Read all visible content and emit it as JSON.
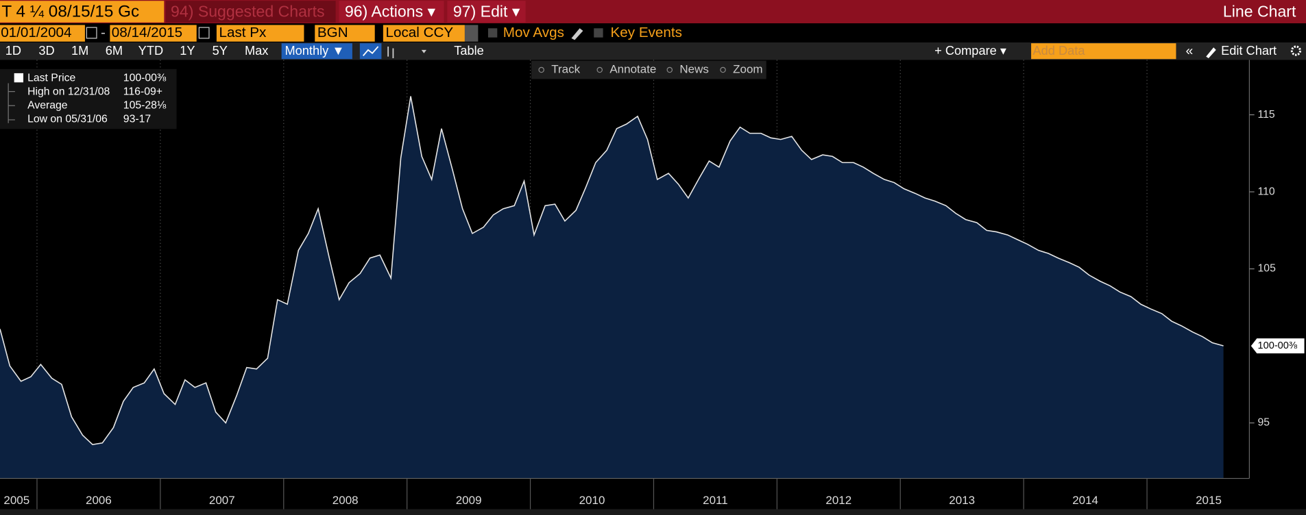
{
  "toolbar": {
    "ticker": "T 4 ¼ 08/15/15 Gc",
    "suggested": "94) Suggested Charts",
    "actions": "96) Actions ▾",
    "edit": "97) Edit ▾",
    "view_title": "Line Chart"
  },
  "settings": {
    "start_date": "01/01/2004",
    "separator": "-",
    "end_date": "08/14/2015",
    "field": "Last Px",
    "source": "BGN",
    "currency": "Local CCY",
    "mov_avgs": "Mov Avgs",
    "key_events": "Key Events"
  },
  "periods": [
    "1D",
    "3D",
    "1M",
    "6M",
    "YTD",
    "1Y",
    "5Y",
    "Max"
  ],
  "frequency": "Monthly ▼",
  "table_button": "Table",
  "compare": "+ Compare ▾",
  "add_data": "Add Data",
  "edit_chart": "Edit Chart",
  "chart_tools": [
    "Track",
    "Annotate",
    "News",
    "Zoom"
  ],
  "chart_data": {
    "type": "area",
    "color": "#e8e8e8",
    "fill": "#0c2140",
    "stats": [
      {
        "label": "Last Price",
        "value": "100-00⅜"
      },
      {
        "label": "High on 12/31/08",
        "value": "116-09+"
      },
      {
        "label": "Average",
        "value": "105-28⅛"
      },
      {
        "label": "Low on 05/31/06",
        "value": "93-17"
      }
    ],
    "xlim": [
      2005.7,
      2015.83
    ],
    "xticks": [
      2005,
      2006,
      2007,
      2008,
      2009,
      2010,
      2011,
      2012,
      2013,
      2014,
      2015
    ],
    "ylim": [
      91.4,
      118.4
    ],
    "yticks": [
      95,
      105,
      110,
      115
    ],
    "grid": true,
    "x": [
      2005.7,
      2005.78,
      2005.87,
      2005.95,
      2006.03,
      2006.12,
      2006.2,
      2006.28,
      2006.37,
      2006.45,
      2006.53,
      2006.62,
      2006.7,
      2006.78,
      2006.87,
      2006.95,
      2007.03,
      2007.12,
      2007.2,
      2007.28,
      2007.37,
      2007.45,
      2007.53,
      2007.62,
      2007.7,
      2007.78,
      2007.87,
      2007.95,
      2008.03,
      2008.12,
      2008.2,
      2008.28,
      2008.37,
      2008.45,
      2008.53,
      2008.62,
      2008.7,
      2008.78,
      2008.87,
      2008.95,
      2009.03,
      2009.12,
      2009.2,
      2009.28,
      2009.37,
      2009.45,
      2009.53,
      2009.62,
      2009.7,
      2009.78,
      2009.87,
      2009.95,
      2010.03,
      2010.12,
      2010.2,
      2010.28,
      2010.37,
      2010.45,
      2010.53,
      2010.62,
      2010.7,
      2010.78,
      2010.87,
      2010.95,
      2011.03,
      2011.12,
      2011.2,
      2011.28,
      2011.37,
      2011.45,
      2011.53,
      2011.62,
      2011.7,
      2011.78,
      2011.87,
      2011.95,
      2012.03,
      2012.12,
      2012.2,
      2012.28,
      2012.37,
      2012.45,
      2012.53,
      2012.62,
      2012.7,
      2012.78,
      2012.87,
      2012.95,
      2013.03,
      2013.12,
      2013.2,
      2013.28,
      2013.37,
      2013.45,
      2013.53,
      2013.62,
      2013.7,
      2013.78,
      2013.87,
      2013.95,
      2014.03,
      2014.12,
      2014.2,
      2014.28,
      2014.37,
      2014.45,
      2014.53,
      2014.62,
      2014.7,
      2014.78,
      2014.87,
      2014.95,
      2015.03,
      2015.12,
      2015.2,
      2015.28,
      2015.37,
      2015.45,
      2015.53,
      2015.62
    ],
    "values": [
      101.1,
      98.7,
      97.7,
      98.0,
      98.8,
      97.9,
      97.5,
      95.4,
      94.2,
      93.6,
      93.7,
      94.7,
      96.4,
      97.3,
      97.6,
      98.5,
      96.9,
      96.2,
      97.8,
      97.3,
      97.6,
      95.7,
      95.0,
      96.8,
      98.6,
      98.5,
      99.2,
      103.0,
      102.7,
      106.2,
      107.3,
      108.9,
      105.7,
      103.0,
      104.1,
      104.7,
      105.7,
      105.9,
      104.4,
      112.2,
      116.2,
      112.3,
      110.8,
      114.1,
      111.4,
      108.9,
      107.3,
      107.7,
      108.5,
      108.9,
      109.1,
      110.7,
      107.2,
      109.1,
      109.2,
      108.1,
      108.8,
      110.3,
      111.9,
      112.7,
      114.1,
      114.4,
      114.9,
      113.4,
      110.8,
      111.2,
      110.5,
      109.6,
      110.9,
      112.0,
      111.6,
      113.3,
      114.2,
      113.8,
      113.8,
      113.5,
      113.4,
      113.6,
      112.7,
      112.1,
      112.4,
      112.3,
      111.9,
      111.9,
      111.6,
      111.2,
      110.8,
      110.6,
      110.2,
      109.9,
      109.6,
      109.4,
      109.1,
      108.6,
      108.2,
      108.0,
      107.5,
      107.4,
      107.2,
      106.9,
      106.6,
      106.2,
      106.0,
      105.7,
      105.4,
      105.1,
      104.6,
      104.2,
      103.9,
      103.5,
      103.2,
      102.7,
      102.4,
      102.1,
      101.6,
      101.3,
      100.9,
      100.6,
      100.2,
      100.0
    ]
  }
}
